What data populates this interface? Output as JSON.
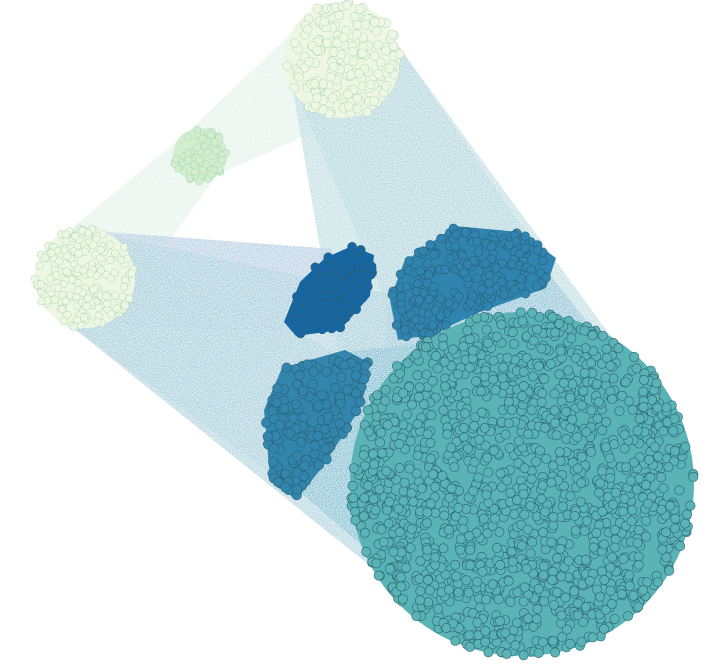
{
  "diagram": {
    "kind": "cluster-flow-graph",
    "background": "#ffffff",
    "node_stroke": "#2b5f73",
    "clusters": [
      {
        "id": "c1",
        "color": "#eef7e3",
        "node_count": 180
      },
      {
        "id": "c2",
        "color": "#d2eecf",
        "node_count": 60
      },
      {
        "id": "c3",
        "color": "#eef7e3",
        "node_count": 190
      },
      {
        "id": "c4",
        "color": "#1666a3",
        "node_count": 90
      },
      {
        "id": "c5",
        "color": "#2f84b0",
        "node_count": 220
      },
      {
        "id": "c6",
        "color": "#3285ad",
        "node_count": 150
      },
      {
        "id": "c7",
        "color": "#5ab4b5",
        "node_count": 1500
      }
    ],
    "links": [
      {
        "source": "c1",
        "target": "c2",
        "color": "#cfeadb"
      },
      {
        "source": "c2",
        "target": "c3",
        "color": "#cfeadb"
      },
      {
        "source": "c1",
        "target": "c5",
        "color": "#7db0c8"
      },
      {
        "source": "c1",
        "target": "c7",
        "color": "#8ec5cc"
      },
      {
        "source": "c3",
        "target": "c4",
        "color": "#7fa9ce"
      },
      {
        "source": "c3",
        "target": "c6",
        "color": "#8cbfcd"
      },
      {
        "source": "c5",
        "target": "c7",
        "color": "#4f9fc0"
      },
      {
        "source": "c3",
        "target": "c7",
        "color": "#79b4c8"
      },
      {
        "source": "c6",
        "target": "c7",
        "color": "#3f9cb8"
      }
    ]
  }
}
